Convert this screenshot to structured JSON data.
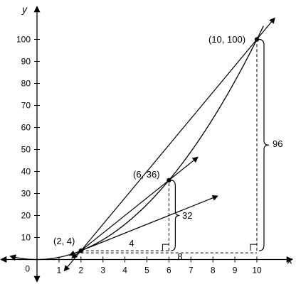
{
  "chart_data": {
    "type": "line",
    "xlabel": "x",
    "ylabel": "y",
    "xlim": [
      0,
      11
    ],
    "ylim": [
      -8,
      110
    ],
    "origin_label": "0",
    "x_ticks": [
      1,
      2,
      3,
      4,
      5,
      6,
      7,
      8,
      9,
      10
    ],
    "y_ticks": [
      10,
      20,
      30,
      40,
      50,
      60,
      70,
      80,
      90,
      100
    ],
    "curve": {
      "expression": "y = x^2",
      "x_range": [
        -1.2,
        10.3
      ]
    },
    "points": [
      {
        "x": 2,
        "y": 4,
        "label": "(2, 4)"
      },
      {
        "x": 6,
        "y": 36,
        "label": "(6, 36)"
      },
      {
        "x": 10,
        "y": 100,
        "label": "(10, 100)"
      }
    ],
    "lines": [
      {
        "through": [
          2,
          4
        ],
        "slope": 12,
        "x_range": [
          1.25,
          10.8
        ]
      },
      {
        "through": [
          2,
          4
        ],
        "slope": 8,
        "x_range": [
          1.6,
          7.3
        ]
      },
      {
        "through": [
          2,
          4
        ],
        "slope": 4,
        "x_range": [
          1.5,
          8.2
        ]
      }
    ],
    "dimensions": [
      {
        "label": "4",
        "from": [
          2,
          4
        ],
        "to": [
          6,
          4
        ]
      },
      {
        "label": "32",
        "from": [
          6,
          4
        ],
        "to": [
          6,
          36
        ]
      },
      {
        "label": "8",
        "from": [
          2,
          4
        ],
        "to": [
          10,
          4
        ]
      },
      {
        "label": "96",
        "from": [
          10,
          4
        ],
        "to": [
          10,
          100
        ]
      }
    ]
  }
}
